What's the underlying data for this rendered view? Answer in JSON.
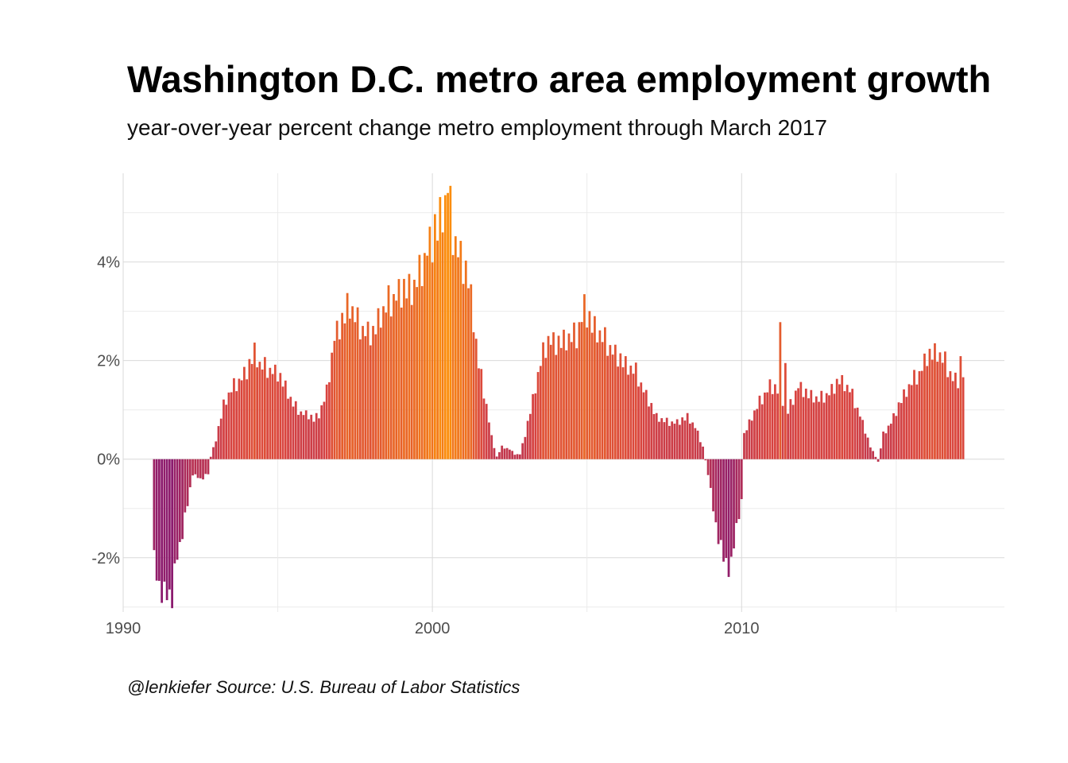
{
  "title": "Washington D.C. metro area employment growth",
  "subtitle": "year-over-year percent change metro employment through March 2017",
  "caption": "@lenkiefer Source: U.S. Bureau of Labor Statistics",
  "chart_data": {
    "type": "bar",
    "x_start": 1991.0,
    "x_step": 0.083333,
    "x_end": 2017.167,
    "xlim": [
      1990,
      2018.5
    ],
    "ylim": [
      -0.031,
      0.058
    ],
    "grid": true,
    "x_ticks": [
      {
        "value": 1990,
        "label": "1990"
      },
      {
        "value": 2000,
        "label": "2000"
      },
      {
        "value": 2010,
        "label": "2010"
      }
    ],
    "y_ticks": [
      {
        "value": -0.02,
        "label": "-2%"
      },
      {
        "value": 0,
        "label": "0%"
      },
      {
        "value": 0.02,
        "label": "2%"
      },
      {
        "value": 0.04,
        "label": "4%"
      }
    ],
    "fill_scale": {
      "low_value": -0.028,
      "low_color": "#8b1a6e",
      "mid_value": 0.015,
      "mid_color": "#d9443f",
      "high_value": 0.054,
      "high_color": "#fb8d0b"
    },
    "anchors": [
      [
        1991.0,
        -0.0205
      ],
      [
        1991.167,
        -0.026
      ],
      [
        1991.417,
        -0.0275
      ],
      [
        1991.583,
        -0.027
      ],
      [
        1991.75,
        -0.02
      ],
      [
        1991.917,
        -0.015
      ],
      [
        1992.083,
        -0.009
      ],
      [
        1992.25,
        -0.003
      ],
      [
        1992.5,
        -0.004
      ],
      [
        1992.75,
        -0.003
      ],
      [
        1992.833,
        0.0005
      ],
      [
        1993.0,
        0.004
      ],
      [
        1993.25,
        0.011
      ],
      [
        1993.5,
        0.014
      ],
      [
        1993.75,
        0.016
      ],
      [
        1994.0,
        0.018
      ],
      [
        1994.25,
        0.0215
      ],
      [
        1994.417,
        0.019
      ],
      [
        1994.583,
        0.0185
      ],
      [
        1994.833,
        0.018
      ],
      [
        1995.0,
        0.0175
      ],
      [
        1995.25,
        0.0145
      ],
      [
        1995.5,
        0.011
      ],
      [
        1995.75,
        0.0095
      ],
      [
        1996.0,
        0.009
      ],
      [
        1996.167,
        0.008
      ],
      [
        1996.333,
        0.009
      ],
      [
        1996.583,
        0.0135
      ],
      [
        1996.833,
        0.025
      ],
      [
        1997.167,
        0.029
      ],
      [
        1997.333,
        0.031
      ],
      [
        1997.583,
        0.0275
      ],
      [
        1997.833,
        0.026
      ],
      [
        1998.083,
        0.0255
      ],
      [
        1998.333,
        0.029
      ],
      [
        1998.583,
        0.0315
      ],
      [
        1998.833,
        0.0335
      ],
      [
        1999.083,
        0.0345
      ],
      [
        1999.333,
        0.034
      ],
      [
        1999.583,
        0.037
      ],
      [
        1999.833,
        0.043
      ],
      [
        2000.083,
        0.045
      ],
      [
        2000.333,
        0.05
      ],
      [
        2000.5,
        0.053
      ],
      [
        2000.667,
        0.046
      ],
      [
        2000.917,
        0.041
      ],
      [
        2001.167,
        0.0365
      ],
      [
        2001.333,
        0.028
      ],
      [
        2001.5,
        0.019
      ],
      [
        2001.75,
        0.011
      ],
      [
        2001.917,
        0.0045
      ],
      [
        2002.083,
        0.0005
      ],
      [
        2002.25,
        0.0025
      ],
      [
        2002.5,
        0.002
      ],
      [
        2002.667,
        0.001
      ],
      [
        2002.833,
        0.001
      ],
      [
        2003.0,
        0.005
      ],
      [
        2003.25,
        0.012
      ],
      [
        2003.5,
        0.0195
      ],
      [
        2003.75,
        0.0245
      ],
      [
        2004.0,
        0.0235
      ],
      [
        2004.333,
        0.024
      ],
      [
        2004.667,
        0.025
      ],
      [
        2004.917,
        0.031
      ],
      [
        2005.167,
        0.027
      ],
      [
        2005.5,
        0.0245
      ],
      [
        2005.917,
        0.0215
      ],
      [
        2006.25,
        0.019
      ],
      [
        2006.583,
        0.0175
      ],
      [
        2006.917,
        0.013
      ],
      [
        2007.25,
        0.0085
      ],
      [
        2007.583,
        0.0075
      ],
      [
        2007.917,
        0.0075
      ],
      [
        2008.25,
        0.0085
      ],
      [
        2008.5,
        0.0065
      ],
      [
        2008.75,
        0.0025
      ],
      [
        2008.917,
        -0.003
      ],
      [
        2009.167,
        -0.0135
      ],
      [
        2009.417,
        -0.02
      ],
      [
        2009.667,
        -0.022
      ],
      [
        2009.833,
        -0.0135
      ],
      [
        2010.0,
        -0.009
      ],
      [
        2010.083,
        0.005
      ],
      [
        2010.333,
        0.0085
      ],
      [
        2010.583,
        0.0115
      ],
      [
        2010.917,
        0.015
      ],
      [
        2011.167,
        0.014
      ],
      [
        2011.5,
        0.0095
      ],
      [
        2011.833,
        0.015
      ],
      [
        2012.167,
        0.013
      ],
      [
        2012.5,
        0.012
      ],
      [
        2012.833,
        0.0135
      ],
      [
        2013.167,
        0.016
      ],
      [
        2013.5,
        0.014
      ],
      [
        2013.833,
        0.009
      ],
      [
        2014.167,
        0.0025
      ],
      [
        2014.417,
        -0.0005
      ],
      [
        2014.583,
        0.005
      ],
      [
        2014.833,
        0.0075
      ],
      [
        2015.167,
        0.012
      ],
      [
        2015.5,
        0.0155
      ],
      [
        2015.75,
        0.0175
      ],
      [
        2016.0,
        0.021
      ],
      [
        2016.333,
        0.0215
      ],
      [
        2016.583,
        0.0195
      ],
      [
        2016.833,
        0.0165
      ],
      [
        2017.0,
        0.016
      ],
      [
        2017.167,
        0.0175
      ]
    ],
    "jitter": [
      0.9,
      1.06,
      0.95,
      1.1,
      0.92,
      1.04,
      0.97,
      1.12,
      0.9,
      1.02,
      0.96,
      1.08
    ],
    "spikes": [
      [
        1997.25,
        0.0337
      ],
      [
        2000.083,
        0.0497
      ],
      [
        2000.5,
        0.054
      ],
      [
        2004.75,
        0.0278
      ],
      [
        2011.25,
        0.0278
      ],
      [
        2017.083,
        0.0209
      ],
      [
        2011.417,
        0.0195
      ],
      [
        2004.417,
        0.0255
      ]
    ]
  }
}
